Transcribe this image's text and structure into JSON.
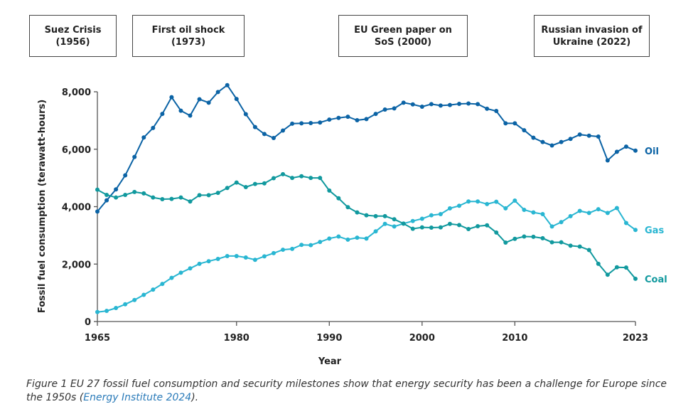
{
  "milestones": [
    {
      "label": "Suez Crisis\n(1956)"
    },
    {
      "label": "First oil shock\n(1973)"
    },
    {
      "label": "EU Green paper on\nSoS (2000)"
    },
    {
      "label": "Russian invasion of\nUkraine (2022)"
    }
  ],
  "chart_data": {
    "type": "line",
    "xlabel": "Year",
    "ylabel": "Fossil fuel consumption (terawatt-hours)",
    "xlim": [
      1965,
      2023
    ],
    "ylim": [
      0,
      8000
    ],
    "xticks": [
      "1965",
      "1980",
      "1990",
      "2000",
      "2010",
      "2023"
    ],
    "yticks": [
      "0",
      "2,000",
      "4,000",
      "6,000",
      "8,000"
    ],
    "grid": false,
    "legend": "end-of-line labels",
    "x": [
      1965,
      1966,
      1967,
      1968,
      1969,
      1970,
      1971,
      1972,
      1973,
      1974,
      1975,
      1976,
      1977,
      1978,
      1979,
      1980,
      1981,
      1982,
      1983,
      1984,
      1985,
      1986,
      1987,
      1988,
      1989,
      1990,
      1991,
      1992,
      1993,
      1994,
      1995,
      1996,
      1997,
      1998,
      1999,
      2000,
      2001,
      2002,
      2003,
      2004,
      2005,
      2006,
      2007,
      2008,
      2009,
      2010,
      2011,
      2012,
      2013,
      2014,
      2015,
      2016,
      2017,
      2018,
      2019,
      2020,
      2021,
      2022,
      2023
    ],
    "series": [
      {
        "name": "Oil",
        "color": "#0b63a5",
        "values": [
          3830,
          4220,
          4600,
          5090,
          5730,
          6410,
          6740,
          7230,
          7810,
          7340,
          7170,
          7740,
          7620,
          7990,
          8230,
          7750,
          7220,
          6770,
          6530,
          6390,
          6650,
          6890,
          6900,
          6910,
          6930,
          7030,
          7090,
          7130,
          7010,
          7050,
          7230,
          7380,
          7420,
          7620,
          7560,
          7480,
          7570,
          7520,
          7540,
          7580,
          7590,
          7570,
          7410,
          7330,
          6900,
          6900,
          6660,
          6400,
          6250,
          6130,
          6250,
          6360,
          6510,
          6470,
          6440,
          5610,
          5910,
          6090,
          5950
        ]
      },
      {
        "name": "Gas",
        "color": "#29b6d2",
        "values": [
          330,
          370,
          470,
          600,
          750,
          930,
          1110,
          1310,
          1520,
          1700,
          1850,
          2010,
          2100,
          2180,
          2280,
          2280,
          2230,
          2150,
          2270,
          2380,
          2500,
          2530,
          2670,
          2660,
          2770,
          2890,
          2960,
          2850,
          2920,
          2890,
          3140,
          3400,
          3310,
          3410,
          3500,
          3580,
          3700,
          3740,
          3940,
          4030,
          4180,
          4180,
          4090,
          4170,
          3940,
          4210,
          3890,
          3800,
          3740,
          3310,
          3460,
          3670,
          3850,
          3780,
          3910,
          3780,
          3950,
          3430,
          3190
        ]
      },
      {
        "name": "Coal",
        "color": "#11999e",
        "values": [
          4590,
          4410,
          4320,
          4410,
          4510,
          4460,
          4320,
          4260,
          4270,
          4320,
          4180,
          4400,
          4400,
          4480,
          4650,
          4840,
          4680,
          4790,
          4810,
          4990,
          5130,
          5000,
          5060,
          5000,
          5000,
          4560,
          4290,
          3980,
          3800,
          3700,
          3670,
          3670,
          3560,
          3410,
          3230,
          3280,
          3270,
          3280,
          3400,
          3360,
          3220,
          3320,
          3350,
          3100,
          2750,
          2880,
          2960,
          2950,
          2900,
          2760,
          2760,
          2640,
          2610,
          2490,
          2010,
          1630,
          1890,
          1880,
          1490
        ]
      }
    ]
  },
  "caption": {
    "text": "Figure 1  EU 27 fossil fuel consumption and security milestones show that energy security has been a challenge for Europe since the 1950s (",
    "link": "Energy Institute 2024",
    "end": ")."
  }
}
